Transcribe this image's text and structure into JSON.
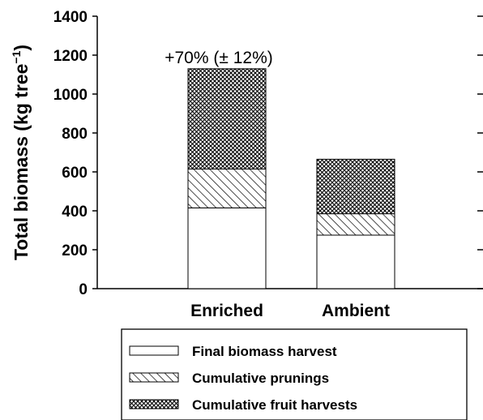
{
  "chart_data": {
    "type": "bar",
    "stacked": true,
    "categories": [
      "Enriched",
      "Ambient"
    ],
    "series": [
      {
        "name": "Final biomass harvest",
        "values": [
          415,
          275
        ],
        "pattern": "none"
      },
      {
        "name": "Cumulative prunings",
        "values": [
          200,
          110
        ],
        "pattern": "diagonal-hatch"
      },
      {
        "name": "Cumulative fruit harvests",
        "values": [
          515,
          280
        ],
        "pattern": "crosshatch"
      }
    ],
    "ylabel_main": "Total biomass (kg tree",
    "ylabel_sup": "−1",
    "ylabel_end": ")",
    "ylim": [
      0,
      1400
    ],
    "yticks": [
      "0",
      "200",
      "400",
      "600",
      "800",
      "1000",
      "1200",
      "1400"
    ],
    "annotation": "+70% (± 12%)",
    "legend_position": "bottom",
    "colors": {
      "bar_fill": "#ffffff",
      "stroke": "#000000"
    }
  }
}
